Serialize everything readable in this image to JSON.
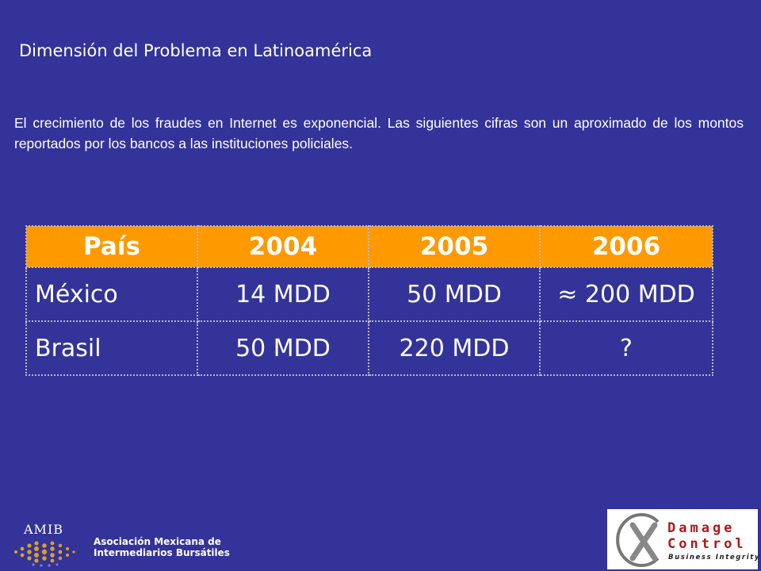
{
  "slide": {
    "title": "Dimensión del Problema en Latinoamérica",
    "intro": "El crecimiento de los fraudes en Internet es exponencial. Las siguientes cifras son un aproximado de los montos reportados por los bancos a las instituciones policiales."
  },
  "table": {
    "headers": [
      "País",
      "2004",
      "2005",
      "2006"
    ],
    "rows": [
      [
        "México",
        "14 MDD",
        "50 MDD",
        "≈ 200 MDD"
      ],
      [
        "Brasil",
        "50 MDD",
        "220 MDD",
        "?"
      ]
    ]
  },
  "logos": {
    "amib_acronym": "AMIB",
    "amib_name_line1": "Asociación Mexicana de",
    "amib_name_line2": "Intermediarios Bursátiles",
    "dc_line1": "Damage",
    "dc_line2": "Control",
    "dc_tagline": "Business Integrity"
  },
  "colors": {
    "background": "#333399",
    "header": "#ff9900",
    "dc_red": "#b01818"
  }
}
